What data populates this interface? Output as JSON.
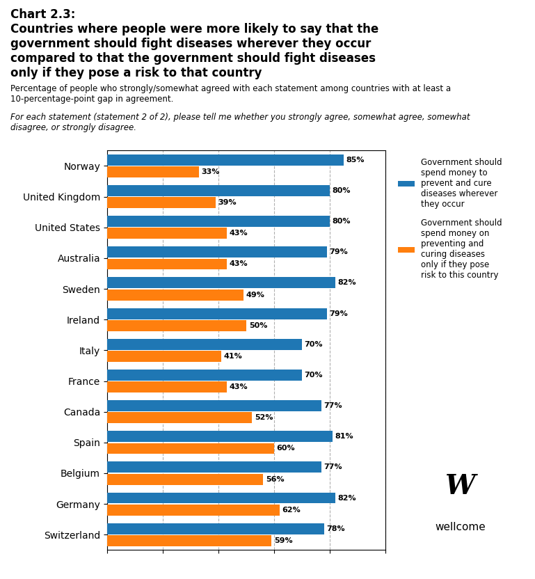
{
  "chart_data": {
    "type": "bar",
    "orientation": "horizontal",
    "title": "Chart 2.3:\nCountries where people were more likely to say that the\ngovernment should fight diseases wherever they occur\ncompared to that the government should fight diseases\nonly if they pose a risk to that country",
    "subtitle": "Percentage of people who strongly/somewhat agreed with each statement among countries with at least a\n10-percentage-point gap in agreement.",
    "annotations": [
      "For each statement (statement 2 of 2), please tell me whether you strongly agree, somewhat agree, somewhat\ndisagree, or strongly disagree.",
      "W",
      "wellcome"
    ],
    "categories": [
      "Norway",
      "United Kingdom",
      "United States",
      "Australia",
      "Sweden",
      "Ireland",
      "Italy",
      "France",
      "Canada",
      "Spain",
      "Belgium",
      "Germany",
      "Switzerland"
    ],
    "series": [
      {
        "name": "Government should\nspend money to\nprevent and cure\ndiseases wherever\nthey occur",
        "values": [
          85,
          80,
          80,
          79,
          82,
          79,
          70,
          70,
          77,
          81,
          77,
          82,
          78
        ],
        "value_labels": [
          "85%",
          "80%",
          "80%",
          "79%",
          "82%",
          "79%",
          "70%",
          "70%",
          "77%",
          "81%",
          "77%",
          "82%",
          "78%"
        ]
      },
      {
        "name": "Government should\nspend money on\npreventing and\ncuring diseases\nonly if they pose\nrisk to this country",
        "values": [
          33,
          39,
          43,
          43,
          49,
          50,
          41,
          43,
          52,
          60,
          56,
          62,
          59
        ],
        "value_labels": [
          "33%",
          "39%",
          "43%",
          "43%",
          "49%",
          "50%",
          "41%",
          "43%",
          "52%",
          "60%",
          "56%",
          "62%",
          "59%"
        ]
      }
    ],
    "xlim": [
      0,
      100
    ],
    "xticks": [
      0,
      20,
      40,
      60,
      80,
      100
    ],
    "grid": true,
    "legend": "upper left",
    "data_labels": true,
    "tick_labels": "y"
  }
}
